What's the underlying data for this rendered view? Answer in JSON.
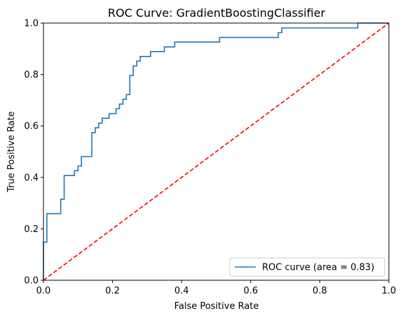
{
  "chart_data": {
    "type": "line",
    "title": "ROC Curve: GradientBoostingClassifier",
    "xlabel": "False Positive Rate",
    "ylabel": "True Positive Rate",
    "xlim": [
      0,
      1
    ],
    "ylim": [
      0,
      1
    ],
    "x_ticks": [
      "0.0",
      "0.2",
      "0.4",
      "0.6",
      "0.8",
      "1.0"
    ],
    "y_ticks": [
      "0.0",
      "0.2",
      "0.4",
      "0.6",
      "0.8",
      "1.0"
    ],
    "grid": false,
    "legend_position": "lower-right",
    "series": [
      {
        "name": "ROC curve (area = 0.83)",
        "color": "#1f77b4",
        "style": "solid",
        "x": [
          0.0,
          0.0,
          0.01,
          0.01,
          0.05,
          0.05,
          0.06,
          0.06,
          0.09,
          0.09,
          0.1,
          0.1,
          0.11,
          0.11,
          0.14,
          0.14,
          0.15,
          0.15,
          0.16,
          0.16,
          0.17,
          0.17,
          0.19,
          0.19,
          0.21,
          0.21,
          0.22,
          0.22,
          0.23,
          0.23,
          0.24,
          0.24,
          0.25,
          0.25,
          0.26,
          0.26,
          0.27,
          0.27,
          0.28,
          0.28,
          0.31,
          0.31,
          0.35,
          0.35,
          0.38,
          0.38,
          0.51,
          0.51,
          0.68,
          0.68,
          0.69,
          0.69,
          0.91,
          0.91,
          1.0
        ],
        "y": [
          0.0,
          0.148,
          0.148,
          0.259,
          0.259,
          0.315,
          0.315,
          0.407,
          0.407,
          0.426,
          0.426,
          0.444,
          0.444,
          0.481,
          0.481,
          0.574,
          0.574,
          0.593,
          0.593,
          0.611,
          0.611,
          0.63,
          0.63,
          0.648,
          0.648,
          0.667,
          0.667,
          0.685,
          0.685,
          0.704,
          0.704,
          0.722,
          0.722,
          0.796,
          0.796,
          0.833,
          0.833,
          0.852,
          0.852,
          0.87,
          0.87,
          0.889,
          0.889,
          0.907,
          0.907,
          0.926,
          0.926,
          0.944,
          0.944,
          0.963,
          0.963,
          0.981,
          0.981,
          1.0,
          1.0
        ]
      },
      {
        "name": "",
        "color": "#ff0000",
        "style": "dashed",
        "x": [
          0,
          1
        ],
        "y": [
          0,
          1
        ]
      }
    ]
  }
}
